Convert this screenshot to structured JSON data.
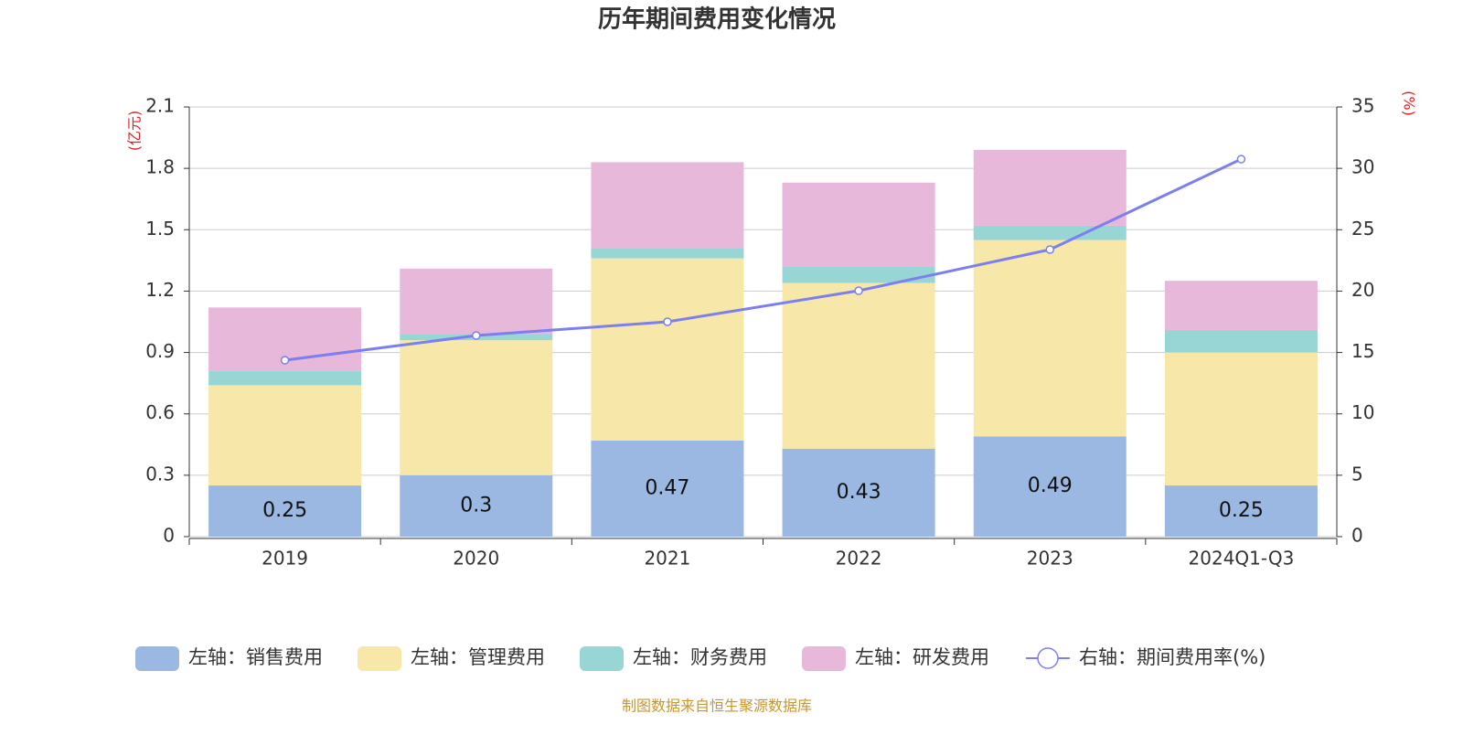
{
  "chart_data": {
    "type": "bar-line",
    "title": "历年期间费用变化情况",
    "y_label": "(亿元)",
    "y2_label": "(%)",
    "source": "制图数据来自恒生聚源数据库",
    "categories": [
      "2019",
      "2020",
      "2021",
      "2022",
      "2023",
      "2024Q1-Q3"
    ],
    "ylim": [
      0,
      2.1
    ],
    "yticks": [
      0,
      0.3,
      0.6,
      0.9,
      1.2,
      1.5,
      1.8,
      2.1
    ],
    "y2lim": [
      0,
      35
    ],
    "y2ticks": [
      0,
      5,
      10,
      15,
      20,
      25,
      30,
      35
    ],
    "grid": true,
    "series": [
      {
        "name": "左轴：销售费用",
        "type": "bar",
        "color": "#9bb8e2",
        "values": [
          0.25,
          0.3,
          0.47,
          0.43,
          0.49,
          0.25
        ]
      },
      {
        "name": "左轴：管理费用",
        "type": "bar",
        "color": "#f7e7a8",
        "values": [
          0.49,
          0.66,
          0.89,
          0.81,
          0.96,
          0.65
        ]
      },
      {
        "name": "左轴：财务费用",
        "type": "bar",
        "color": "#98d5d5",
        "values": [
          0.07,
          0.03,
          0.05,
          0.08,
          0.07,
          0.11
        ]
      },
      {
        "name": "左轴：研发费用",
        "type": "bar",
        "color": "#e7b8d9",
        "values": [
          0.31,
          0.32,
          0.42,
          0.41,
          0.37,
          0.24
        ]
      },
      {
        "name": "右轴：期间费用率(%)",
        "type": "line",
        "axis": "y2",
        "color": "#7b7ff0",
        "values": [
          14.37,
          16.38,
          17.5,
          20.03,
          23.38,
          30.75
        ]
      }
    ]
  }
}
